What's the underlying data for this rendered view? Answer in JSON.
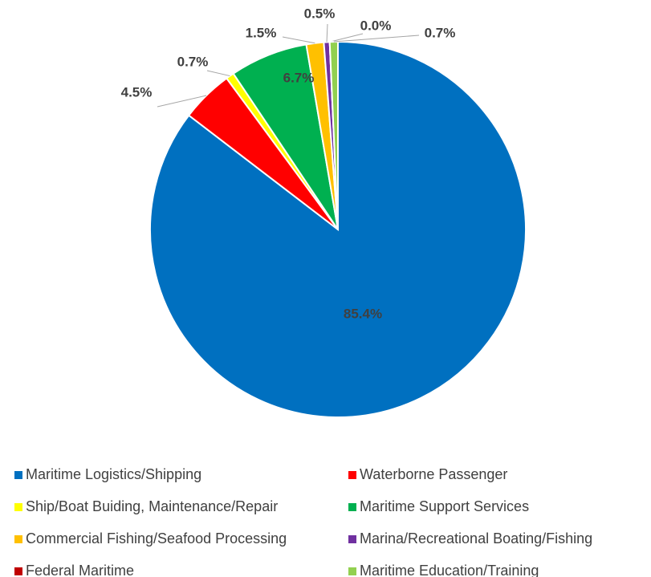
{
  "chart_data": {
    "type": "pie",
    "categories": [
      "Maritime Logistics/Shipping",
      "Waterborne Passenger",
      "Ship/Boat Buiding, Maintenance/Repair",
      "Maritime Support Services",
      "Commercial Fishing/Seafood Processing",
      "Marina/Recreational Boating/Fishing",
      "Federal Maritime",
      "Maritime Education/Training"
    ],
    "values": [
      85.4,
      4.5,
      0.7,
      6.7,
      1.5,
      0.5,
      0.0,
      0.7
    ],
    "value_labels": [
      "85.4%",
      "4.5%",
      "0.7%",
      "6.7%",
      "1.5%",
      "0.5%",
      "0.0%",
      "0.7%"
    ],
    "colors": [
      "#0070c0",
      "#ff0000",
      "#ffff00",
      "#00b050",
      "#ffc000",
      "#7030a0",
      "#c00000",
      "#92d050"
    ],
    "legend": "bottom"
  }
}
